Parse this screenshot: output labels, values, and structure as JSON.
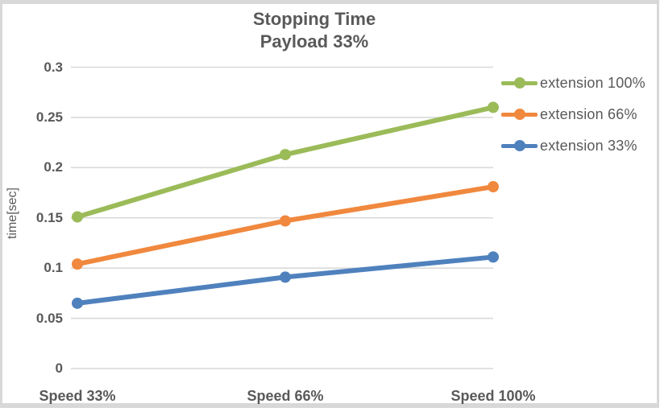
{
  "chart_data": {
    "type": "line",
    "title_line1": "Stopping Time",
    "title_line2": "Payload 33%",
    "ylabel": "time[sec]",
    "xlabel": "",
    "categories": [
      "Speed 33%",
      "Speed 66%",
      "Speed 100%"
    ],
    "series": [
      {
        "name": "extension 100%",
        "color": "#9bbb59",
        "values": [
          0.151,
          0.213,
          0.26
        ]
      },
      {
        "name": "extension 66%",
        "color": "#f0883e",
        "values": [
          0.104,
          0.147,
          0.181
        ]
      },
      {
        "name": "extension 33%",
        "color": "#4f81bd",
        "values": [
          0.065,
          0.091,
          0.111
        ]
      }
    ],
    "ylim": [
      0,
      0.3
    ],
    "y_ticks": [
      {
        "value": 0.3,
        "label": "0.3"
      },
      {
        "value": 0.25,
        "label": "0.25"
      },
      {
        "value": 0.2,
        "label": "0.2"
      },
      {
        "value": 0.15,
        "label": "0.15"
      },
      {
        "value": 0.1,
        "label": "0.1"
      },
      {
        "value": 0.05,
        "label": "0.05"
      },
      {
        "value": 0,
        "label": "0"
      }
    ],
    "grid": true,
    "legend_position": "right"
  },
  "colors": {
    "text": "#595959",
    "gridline": "#d9d9d9",
    "frame": "#d8d8d8",
    "background": "#ffffff"
  }
}
